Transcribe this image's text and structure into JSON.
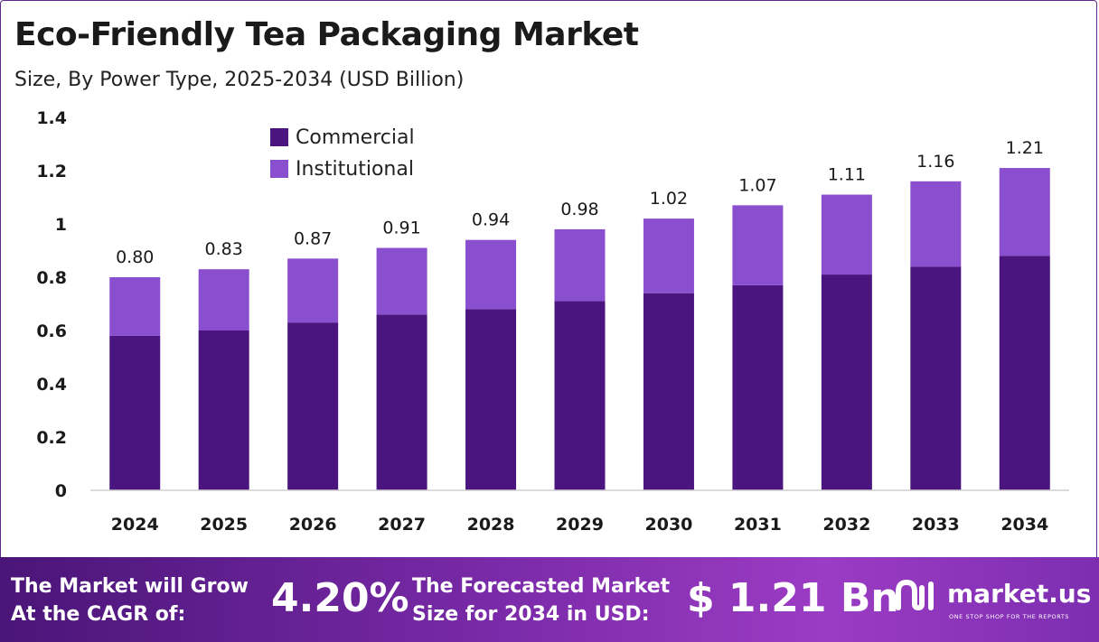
{
  "title": "Eco-Friendly Tea Packaging Market",
  "subtitle": "Size, By Power Type, 2025-2034 (USD Billion)",
  "colors": {
    "commercial": "#4b157f",
    "institutional": "#8a4fcf",
    "footer_start": "#4a1578",
    "footer_end": "#9b3cc4"
  },
  "chart_data": {
    "type": "bar",
    "stacked": true,
    "categories": [
      "2024",
      "2025",
      "2026",
      "2027",
      "2028",
      "2029",
      "2030",
      "2031",
      "2032",
      "2033",
      "2034"
    ],
    "series": [
      {
        "name": "Commercial",
        "values": [
          0.58,
          0.6,
          0.63,
          0.66,
          0.68,
          0.71,
          0.74,
          0.77,
          0.81,
          0.84,
          0.88
        ]
      },
      {
        "name": "Institutional",
        "values": [
          0.22,
          0.23,
          0.24,
          0.25,
          0.26,
          0.27,
          0.28,
          0.3,
          0.3,
          0.32,
          0.33
        ]
      }
    ],
    "totals": [
      "0.80",
      "0.83",
      "0.87",
      "0.91",
      "0.94",
      "0.98",
      "1.02",
      "1.07",
      "1.11",
      "1.16",
      "1.21"
    ],
    "ylim": [
      0,
      1.4
    ],
    "yticks": [
      "0",
      "0.2",
      "0.4",
      "0.6",
      "0.8",
      "1",
      "1.2",
      "1.4"
    ],
    "title": "Eco-Friendly Tea Packaging Market",
    "xlabel": "",
    "ylabel": "",
    "legend": "top-left",
    "grid": false
  },
  "footer": {
    "cagr_label_line1": "The Market will Grow",
    "cagr_label_line2": "At the CAGR of:",
    "cagr_value": "4.20%",
    "forecast_label_line1": "The Forecasted Market",
    "forecast_label_line2": "Size for 2034 in USD:",
    "forecast_value": "$ 1.21 Bn"
  },
  "brand": {
    "name": "market.us",
    "tagline": "ONE STOP SHOP FOR THE REPORTS"
  }
}
